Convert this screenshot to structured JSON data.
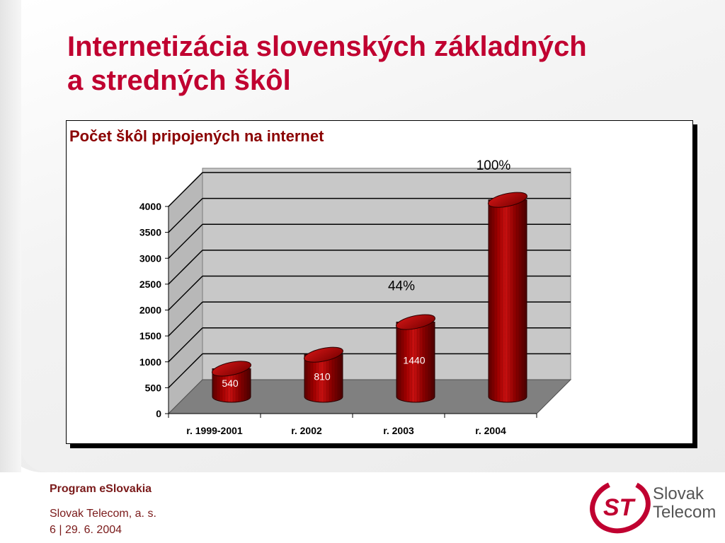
{
  "slide": {
    "title_line1": "Internetizácia slovenských základných",
    "title_line2": "a stredných škôl"
  },
  "footer": {
    "program": "Program eSlovakia",
    "company": "Slovak Telecom, a. s.",
    "page": "6 | 29. 6. 2004"
  },
  "logo": {
    "mark": "ST",
    "line1": "Slovak",
    "line2": "Telecom",
    "color": "#c00030"
  },
  "chart_data": {
    "type": "bar",
    "title": "Počet škôl pripojených na internet",
    "categories": [
      "r. 1999-2001",
      "r. 2002",
      "r. 2003",
      "r. 2004"
    ],
    "values": [
      540,
      810,
      1440,
      3800
    ],
    "data_labels": [
      "540",
      "810",
      "1440",
      ""
    ],
    "annotations": [
      {
        "category": "r. 2003",
        "text": "44%"
      },
      {
        "category": "r. 2004",
        "text": "100%"
      }
    ],
    "yticks": [
      "4000",
      "3500",
      "3000",
      "2500",
      "2000",
      "1500",
      "1000",
      "500",
      "0"
    ],
    "ylim": [
      0,
      4000
    ],
    "grid": true,
    "bar_color": "#8b0000",
    "floor_color": "#808080"
  }
}
